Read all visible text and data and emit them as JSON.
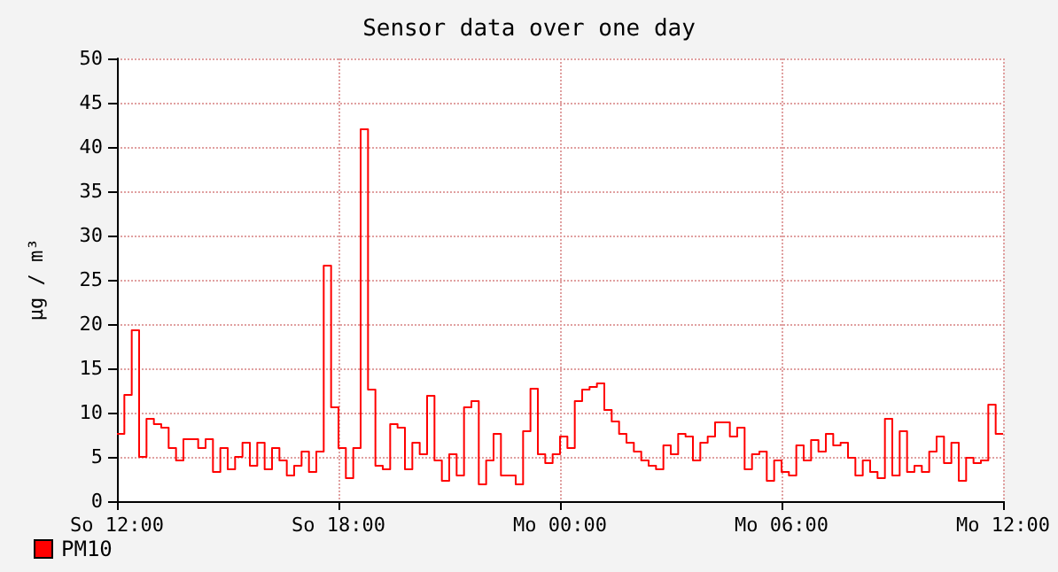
{
  "chart_data": {
    "type": "step",
    "title": "Sensor data over one day",
    "ylabel": "µg / m³",
    "legend": "bottom left",
    "grid": true,
    "line_style": "solid",
    "marker": "none",
    "categories": [
      "So 12:00",
      null,
      null,
      null,
      null,
      null,
      null,
      null,
      null,
      null,
      null,
      null,
      null,
      null,
      null,
      null,
      null,
      null,
      null,
      null,
      null,
      null,
      null,
      null,
      null,
      null,
      null,
      null,
      null,
      null,
      "So 18:00",
      null,
      null,
      null,
      null,
      null,
      null,
      null,
      null,
      null,
      null,
      null,
      null,
      null,
      null,
      null,
      null,
      null,
      null,
      null,
      null,
      null,
      null,
      null,
      null,
      null,
      null,
      null,
      null,
      null,
      "Mo 00:00",
      null,
      null,
      null,
      null,
      null,
      null,
      null,
      null,
      null,
      null,
      null,
      null,
      null,
      null,
      null,
      null,
      null,
      null,
      null,
      null,
      null,
      null,
      null,
      null,
      null,
      null,
      null,
      null,
      null,
      "Mo 06:00",
      null,
      null,
      null,
      null,
      null,
      null,
      null,
      null,
      null,
      null,
      null,
      null,
      null,
      null,
      null,
      null,
      null,
      null,
      null,
      null,
      null,
      null,
      null,
      null,
      null,
      null,
      null,
      null,
      null,
      "Mo 12:00"
    ],
    "ylim": [
      0,
      50
    ],
    "yticks": [
      0,
      5,
      10,
      15,
      20,
      25,
      30,
      35,
      40,
      45,
      50
    ],
    "series": [
      {
        "name": "PM10",
        "color": "#ff0000",
        "values": [
          7.6,
          12,
          19.3,
          5,
          9.3,
          8.7,
          8.3,
          6,
          4.6,
          7,
          7,
          6,
          7,
          3.3,
          6,
          3.6,
          5,
          6.6,
          4,
          6.6,
          3.6,
          6,
          4.6,
          2.9,
          4,
          5.6,
          3.3,
          5.6,
          26.6,
          10.6,
          6,
          2.6,
          6,
          42,
          12.6,
          4,
          3.6,
          8.7,
          8.3,
          3.6,
          6.6,
          5.3,
          11.9,
          4.6,
          2.3,
          5.3,
          2.9,
          10.6,
          11.3,
          1.9,
          4.6,
          7.6,
          2.9,
          2.9,
          1.9,
          7.9,
          12.7,
          5.3,
          4.3,
          5.3,
          7.3,
          6,
          11.3,
          12.6,
          12.9,
          13.3,
          10.3,
          9,
          7.6,
          6.6,
          5.6,
          4.6,
          4,
          3.6,
          6.3,
          5.3,
          7.6,
          7.3,
          4.6,
          6.6,
          7.3,
          8.9,
          8.9,
          7.3,
          8.3,
          3.6,
          5.3,
          5.6,
          2.3,
          4.6,
          3.3,
          2.9,
          6.3,
          4.6,
          6.9,
          5.6,
          7.6,
          6.3,
          6.6,
          4.9,
          2.9,
          4.6,
          3.3,
          2.6,
          9.3,
          2.9,
          7.9,
          3.3,
          4,
          3.3,
          5.6,
          7.3,
          4.3,
          6.6,
          2.3,
          4.9,
          4.3,
          4.6,
          10.9,
          7.6,
          7.6
        ]
      }
    ]
  }
}
